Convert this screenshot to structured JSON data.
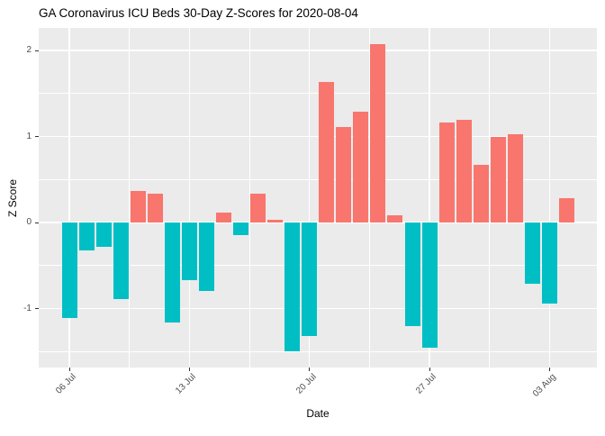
{
  "title": "GA Coronavirus ICU Beds 30-Day Z-Scores for 2020-08-04",
  "chart_data": {
    "type": "bar",
    "title": "GA Coronavirus ICU Beds 30-Day Z-Scores for 2020-08-04",
    "xlabel": "Date",
    "ylabel": "Z Score",
    "x": [
      "2020-07-06",
      "2020-07-07",
      "2020-07-08",
      "2020-07-09",
      "2020-07-10",
      "2020-07-11",
      "2020-07-12",
      "2020-07-13",
      "2020-07-14",
      "2020-07-15",
      "2020-07-16",
      "2020-07-17",
      "2020-07-18",
      "2020-07-19",
      "2020-07-20",
      "2020-07-21",
      "2020-07-22",
      "2020-07-23",
      "2020-07-24",
      "2020-07-25",
      "2020-07-26",
      "2020-07-27",
      "2020-07-28",
      "2020-07-29",
      "2020-07-30",
      "2020-07-31",
      "2020-08-01",
      "2020-08-02",
      "2020-08-03",
      "2020-08-04"
    ],
    "values": [
      -1.11,
      -0.32,
      -0.28,
      -0.89,
      0.37,
      0.33,
      -1.16,
      -0.67,
      -0.8,
      0.11,
      -0.15,
      0.33,
      0.03,
      -1.5,
      -1.32,
      1.63,
      1.11,
      1.29,
      2.07,
      0.08,
      -1.2,
      -1.46,
      1.16,
      1.19,
      0.67,
      0.99,
      1.03,
      -0.71,
      -0.94,
      0.28
    ],
    "positive_color": "#F8766D",
    "negative_color": "#00BFC4",
    "ylim": [
      -1.71,
      2.26
    ],
    "yticks": [
      {
        "label": "2",
        "value": 2
      },
      {
        "label": "1",
        "value": 1
      },
      {
        "label": "0",
        "value": 0
      },
      {
        "label": "-1",
        "value": -1
      }
    ],
    "y_minor_values": [
      -1.5,
      -0.5,
      0.5,
      1.5
    ],
    "xticks": [
      {
        "label": "06 Jul",
        "index": 0
      },
      {
        "label": "13 Jul",
        "index": 7
      },
      {
        "label": "20 Jul",
        "index": 14
      },
      {
        "label": "27 Jul",
        "index": 21
      },
      {
        "label": "03 Aug",
        "index": 28
      }
    ],
    "x_minor_indices": [
      3.5,
      10.5,
      17.5,
      24.5
    ],
    "panel_bg": "#EBEBEB",
    "grid_color": "#FFFFFF",
    "tick_mark_color": "#333333",
    "tick_label_color": "#4D4D4D",
    "grid": "on",
    "legend": "none"
  }
}
